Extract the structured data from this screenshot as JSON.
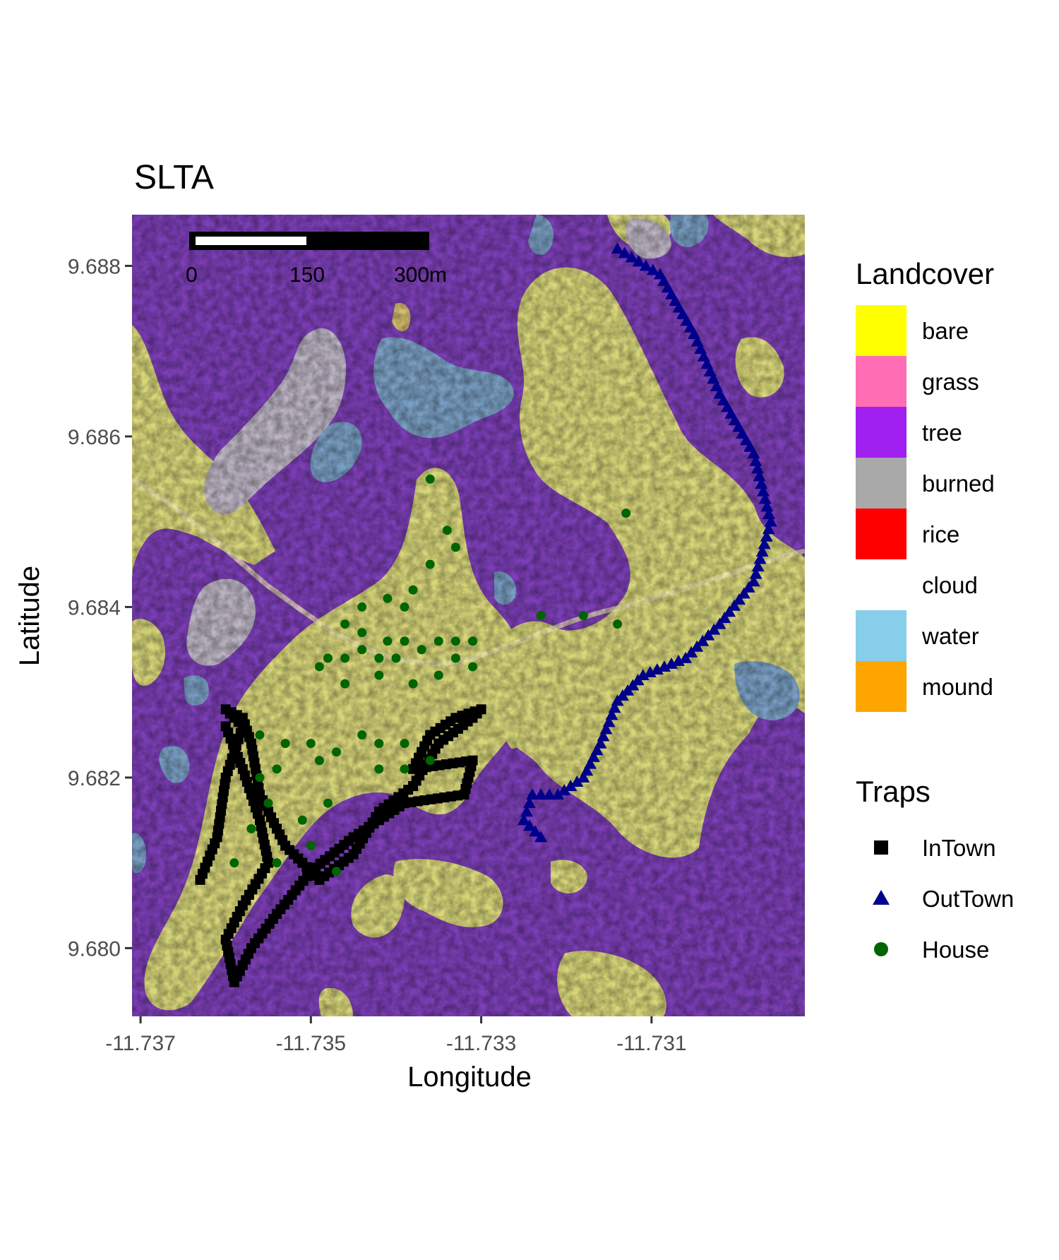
{
  "title": "SLTA",
  "axes": {
    "xlabel": "Longitude",
    "ylabel": "Latitude",
    "x_ticks": [
      "-11.737",
      "-11.735",
      "-11.733",
      "-11.731"
    ],
    "y_ticks": [
      "9.688",
      "9.686",
      "9.684",
      "9.682",
      "9.680"
    ]
  },
  "scalebar": {
    "labels": [
      "0",
      "150",
      "300m"
    ]
  },
  "legend_landcover": {
    "title": "Landcover",
    "items": [
      {
        "label": "bare",
        "color": "#FFFF00"
      },
      {
        "label": "grass",
        "color": "#FF6EB4"
      },
      {
        "label": "tree",
        "color": "#A020F0"
      },
      {
        "label": "burned",
        "color": "#A9A9A9"
      },
      {
        "label": "rice",
        "color": "#FF0000"
      },
      {
        "label": "cloud",
        "color": "#FFFFFF"
      },
      {
        "label": "water",
        "color": "#87CEEB"
      },
      {
        "label": "mound",
        "color": "#FFA500"
      }
    ]
  },
  "legend_traps": {
    "title": "Traps",
    "items": [
      {
        "label": "InTown",
        "shape": "square",
        "color": "#000000"
      },
      {
        "label": "OutTown",
        "shape": "triangle",
        "color": "#00008B"
      },
      {
        "label": "House",
        "shape": "circle",
        "color": "#006400"
      }
    ]
  },
  "map_data": {
    "xlim": [
      -11.7371,
      -11.7292
    ],
    "ylim": [
      9.6792,
      9.6886
    ],
    "intown_path": [
      [
        -11.7363,
        9.6808
      ],
      [
        -11.7361,
        9.6813
      ],
      [
        -11.736,
        9.682
      ],
      [
        -11.7358,
        9.6826
      ],
      [
        -11.736,
        9.6828
      ],
      [
        -11.7358,
        9.6827
      ],
      [
        -11.7357,
        9.6824
      ],
      [
        -11.7356,
        9.6818
      ],
      [
        -11.7353,
        9.6812
      ],
      [
        -11.7349,
        9.6808
      ],
      [
        -11.7345,
        9.6811
      ],
      [
        -11.7342,
        9.6816
      ],
      [
        -11.7338,
        9.6819
      ],
      [
        -11.7335,
        9.6824
      ],
      [
        -11.7331,
        9.6827
      ],
      [
        -11.733,
        9.6828
      ],
      [
        -11.7333,
        9.6827
      ],
      [
        -11.7336,
        9.6825
      ],
      [
        -11.7338,
        9.6821
      ],
      [
        -11.7331,
        9.6822
      ],
      [
        -11.7332,
        9.6818
      ],
      [
        -11.7339,
        9.6817
      ],
      [
        -11.7345,
        9.6813
      ],
      [
        -11.735,
        9.6809
      ],
      [
        -11.7354,
        9.6804
      ],
      [
        -11.7357,
        9.68
      ],
      [
        -11.7359,
        9.6796
      ],
      [
        -11.736,
        9.6801
      ],
      [
        -11.7358,
        9.6805
      ],
      [
        -11.7355,
        9.681
      ],
      [
        -11.7356,
        9.6815
      ],
      [
        -11.7358,
        9.6821
      ],
      [
        -11.736,
        9.6826
      ]
    ],
    "outtown_path": [
      [
        -11.7314,
        9.6882
      ],
      [
        -11.7309,
        9.6879
      ],
      [
        -11.7305,
        9.6872
      ],
      [
        -11.7302,
        9.6865
      ],
      [
        -11.7298,
        9.6858
      ],
      [
        -11.7296,
        9.685
      ],
      [
        -11.7298,
        9.6843
      ],
      [
        -11.7302,
        9.6838
      ],
      [
        -11.7306,
        9.6834
      ],
      [
        -11.7311,
        9.6832
      ],
      [
        -11.7314,
        9.6829
      ],
      [
        -11.7316,
        9.6824
      ],
      [
        -11.7318,
        9.682
      ],
      [
        -11.7321,
        9.6818
      ],
      [
        -11.7324,
        9.6818
      ],
      [
        -11.7325,
        9.6815
      ],
      [
        -11.7323,
        9.6813
      ]
    ],
    "houses": [
      [
        -11.7336,
        9.6855
      ],
      [
        -11.7334,
        9.6849
      ],
      [
        -11.7333,
        9.6847
      ],
      [
        -11.7336,
        9.6845
      ],
      [
        -11.7338,
        9.6842
      ],
      [
        -11.7341,
        9.6841
      ],
      [
        -11.7344,
        9.684
      ],
      [
        -11.7339,
        9.684
      ],
      [
        -11.7346,
        9.6838
      ],
      [
        -11.7344,
        9.6837
      ],
      [
        -11.7341,
        9.6836
      ],
      [
        -11.7339,
        9.6836
      ],
      [
        -11.7337,
        9.6835
      ],
      [
        -11.7335,
        9.6836
      ],
      [
        -11.7333,
        9.6836
      ],
      [
        -11.7331,
        9.6836
      ],
      [
        -11.7333,
        9.6834
      ],
      [
        -11.734,
        9.6834
      ],
      [
        -11.7342,
        9.6834
      ],
      [
        -11.7344,
        9.6835
      ],
      [
        -11.7346,
        9.6834
      ],
      [
        -11.7348,
        9.6834
      ],
      [
        -11.7342,
        9.6832
      ],
      [
        -11.7338,
        9.6831
      ],
      [
        -11.7335,
        9.6832
      ],
      [
        -11.7331,
        9.6833
      ],
      [
        -11.7349,
        9.6833
      ],
      [
        -11.7346,
        9.6831
      ],
      [
        -11.7356,
        9.6825
      ],
      [
        -11.7353,
        9.6824
      ],
      [
        -11.735,
        9.6824
      ],
      [
        -11.7347,
        9.6823
      ],
      [
        -11.7344,
        9.6825
      ],
      [
        -11.7342,
        9.6824
      ],
      [
        -11.7339,
        9.6824
      ],
      [
        -11.7336,
        9.6822
      ],
      [
        -11.7339,
        9.6821
      ],
      [
        -11.7342,
        9.6821
      ],
      [
        -11.7349,
        9.6822
      ],
      [
        -11.7354,
        9.6821
      ],
      [
        -11.7356,
        9.682
      ],
      [
        -11.7355,
        9.6817
      ],
      [
        -11.7351,
        9.6815
      ],
      [
        -11.7348,
        9.6817
      ],
      [
        -11.7357,
        9.6814
      ],
      [
        -11.7359,
        9.681
      ],
      [
        -11.7354,
        9.681
      ],
      [
        -11.735,
        9.6812
      ],
      [
        -11.7347,
        9.6809
      ],
      [
        -11.7323,
        9.6839
      ],
      [
        -11.7318,
        9.6839
      ],
      [
        -11.7314,
        9.6838
      ],
      [
        -11.7313,
        9.6851
      ]
    ]
  }
}
